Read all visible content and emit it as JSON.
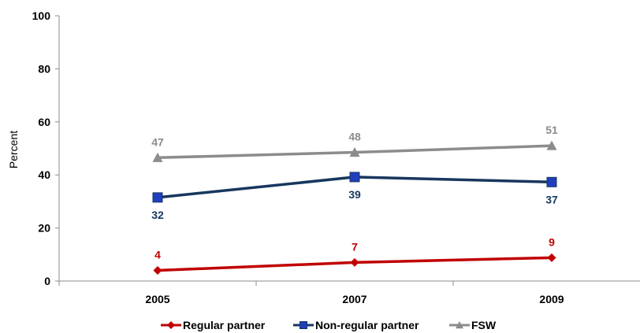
{
  "chart_data": {
    "type": "line",
    "title": "",
    "xlabel": "",
    "ylabel": "Percent",
    "categories": [
      "2005",
      "2007",
      "2009"
    ],
    "ylim": [
      0,
      100
    ],
    "yticks": [
      0,
      20,
      40,
      60,
      80,
      100
    ],
    "grid": false,
    "legend_position": "bottom",
    "series": [
      {
        "name": "Regular partner",
        "values": [
          4,
          7,
          9
        ],
        "plot_values": [
          4,
          7,
          8.8
        ],
        "color": "#c00000",
        "marker": "diamond",
        "label_position": "above"
      },
      {
        "name": "Non-regular partner",
        "values": [
          32,
          39,
          37
        ],
        "plot_values": [
          31.5,
          39.2,
          37.3
        ],
        "color": "#17375e",
        "marker": "square",
        "marker_color": "#1f3fbf",
        "label_position": "below"
      },
      {
        "name": "FSW",
        "values": [
          47,
          48,
          51
        ],
        "plot_values": [
          46.5,
          48.5,
          51
        ],
        "color": "#8c8c8c",
        "marker": "triangle",
        "label_position": "above"
      }
    ]
  }
}
